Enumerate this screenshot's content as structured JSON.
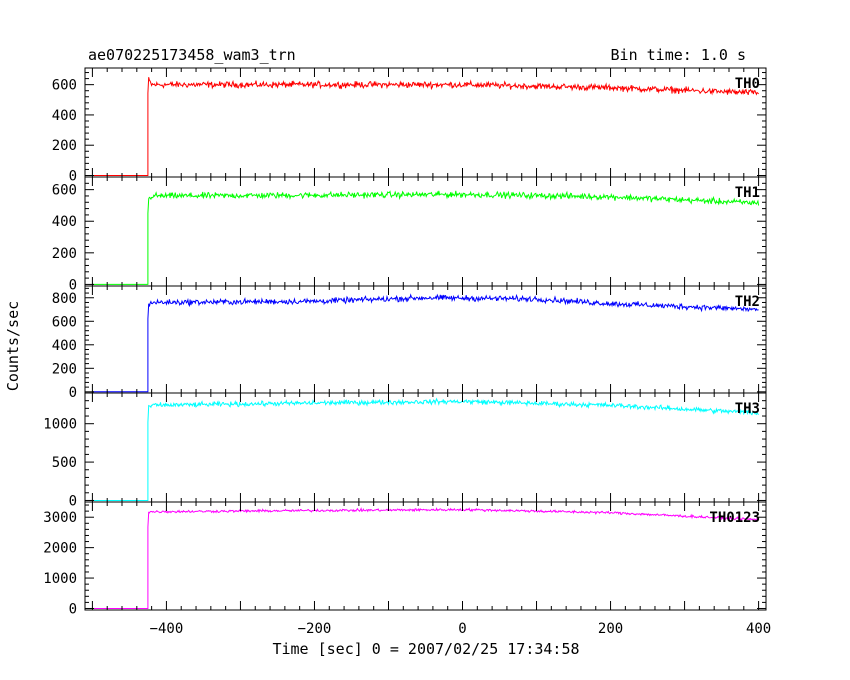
{
  "header": {
    "left": "ae070225173458_wam3_trn",
    "right": "Bin time: 1.0 s"
  },
  "axes": {
    "ylabel": "Counts/sec",
    "xlabel": "Time [sec] 0 = 2007/02/25 17:34:58"
  },
  "chart_data": {
    "type": "line",
    "xlabel": "Time [sec] 0 = 2007/02/25 17:34:58",
    "ylabel": "Counts/sec",
    "xlim": [
      -510,
      410
    ],
    "x_ticks": [
      -400,
      -200,
      0,
      200,
      400
    ],
    "x_tick_labels": [
      "−400",
      "−200",
      "0",
      "200",
      "400"
    ],
    "bin_time_s": 1.0,
    "series": [
      {
        "name": "TH0",
        "color": "#ff0000",
        "ylim": [
          -10,
          710
        ],
        "y_ticks": [
          0,
          200,
          400,
          600
        ],
        "y_tick_labels": [
          "0",
          "200",
          "400",
          "600"
        ],
        "baseline": 0,
        "step_x": -425,
        "x_start": -500,
        "x_end": 400,
        "level": [
          [
            -425,
            640
          ],
          [
            -420,
            600
          ],
          [
            -200,
            600
          ],
          [
            0,
            600
          ],
          [
            200,
            580
          ],
          [
            400,
            545
          ]
        ],
        "noise_halfwidth": 30
      },
      {
        "name": "TH1",
        "color": "#00ff00",
        "ylim": [
          -10,
          680
        ],
        "y_ticks": [
          0,
          200,
          400,
          600
        ],
        "y_tick_labels": [
          "0",
          "200",
          "400",
          "600"
        ],
        "baseline": 0,
        "step_x": -425,
        "x_start": -500,
        "x_end": 400,
        "level": [
          [
            -425,
            530
          ],
          [
            -420,
            560
          ],
          [
            -200,
            565
          ],
          [
            0,
            570
          ],
          [
            200,
            555
          ],
          [
            400,
            515
          ]
        ],
        "noise_halfwidth": 28
      },
      {
        "name": "TH2",
        "color": "#0000ff",
        "ylim": [
          -10,
          900
        ],
        "y_ticks": [
          0,
          200,
          400,
          600,
          800
        ],
        "y_tick_labels": [
          "0",
          "200",
          "400",
          "600",
          "800"
        ],
        "baseline": 0,
        "step_x": -425,
        "x_start": -500,
        "x_end": 400,
        "level": [
          [
            -425,
            730
          ],
          [
            -420,
            760
          ],
          [
            -200,
            770
          ],
          [
            -50,
            800
          ],
          [
            100,
            790
          ],
          [
            200,
            750
          ],
          [
            400,
            700
          ]
        ],
        "noise_halfwidth": 35
      },
      {
        "name": "TH3",
        "color": "#00ffff",
        "ylim": [
          -20,
          1400
        ],
        "y_ticks": [
          0,
          500,
          1000
        ],
        "y_tick_labels": [
          "0",
          "500",
          "1000"
        ],
        "baseline": 0,
        "step_x": -425,
        "x_start": -500,
        "x_end": 400,
        "level": [
          [
            -425,
            1200
          ],
          [
            -420,
            1240
          ],
          [
            -200,
            1270
          ],
          [
            0,
            1290
          ],
          [
            200,
            1240
          ],
          [
            400,
            1140
          ]
        ],
        "noise_halfwidth": 45
      },
      {
        "name": "TH0123",
        "color": "#ff00ff",
        "ylim": [
          -50,
          3500
        ],
        "y_ticks": [
          0,
          1000,
          2000,
          3000
        ],
        "y_tick_labels": [
          "0",
          "1000",
          "2000",
          "3000"
        ],
        "baseline": 0,
        "step_x": -425,
        "x_start": -500,
        "x_end": 400,
        "level": [
          [
            -425,
            3150
          ],
          [
            -420,
            3180
          ],
          [
            -200,
            3220
          ],
          [
            0,
            3250
          ],
          [
            200,
            3150
          ],
          [
            400,
            2920
          ]
        ],
        "noise_halfwidth": 60
      }
    ]
  }
}
